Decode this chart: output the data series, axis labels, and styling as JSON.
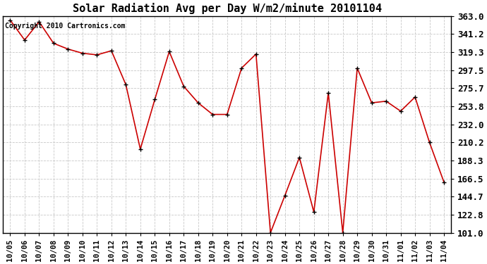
{
  "title": "Solar Radiation Avg per Day W/m2/minute 20101104",
  "copyright": "Copyright 2010 Cartronics.com",
  "x_labels": [
    "10/05",
    "10/06",
    "10/07",
    "10/08",
    "10/09",
    "10/10",
    "10/11",
    "10/12",
    "10/13",
    "10/14",
    "10/15",
    "10/16",
    "10/17",
    "10/18",
    "10/19",
    "10/20",
    "10/21",
    "10/22",
    "10/23",
    "10/24",
    "10/25",
    "10/26",
    "10/27",
    "10/28",
    "10/29",
    "10/30",
    "10/31",
    "11/01",
    "11/02",
    "11/03",
    "11/04"
  ],
  "y_values": [
    358,
    334,
    356,
    330,
    323,
    318,
    316,
    321,
    280,
    202,
    262,
    320,
    278,
    258,
    244,
    244,
    300,
    317,
    101,
    146,
    192,
    126,
    270,
    101,
    300,
    258,
    260,
    248,
    265,
    210,
    162
  ],
  "y_ticks": [
    101.0,
    122.8,
    144.7,
    166.5,
    188.3,
    210.2,
    232.0,
    253.8,
    275.7,
    297.5,
    319.3,
    341.2,
    363.0
  ],
  "line_color": "#cc0000",
  "marker_color": "#000000",
  "background_color": "#ffffff",
  "grid_color": "#c8c8c8",
  "title_fontsize": 11,
  "copyright_fontsize": 7,
  "tick_fontsize": 7.5,
  "ytick_fontsize": 9,
  "y_min": 101.0,
  "y_max": 363.0
}
